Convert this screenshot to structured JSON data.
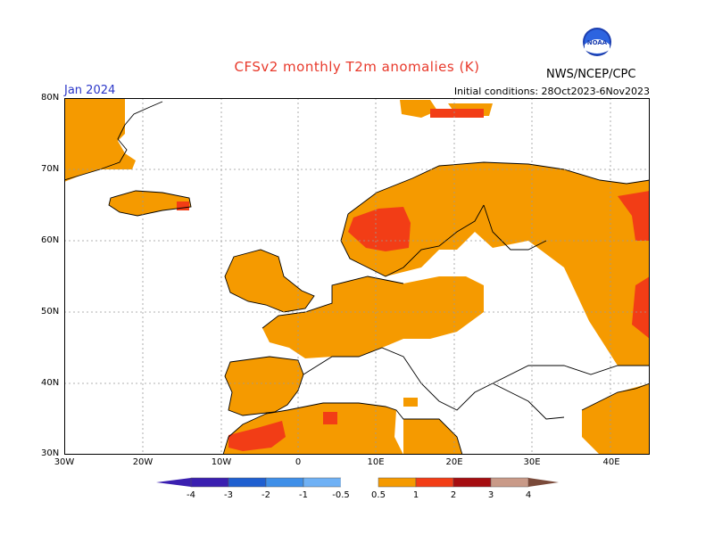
{
  "header": {
    "title": "CFSv2 monthly T2m anomalies (K)",
    "agency": "NWS/NCEP/CPC",
    "logo_text": "NOAA",
    "month": "Jan 2024",
    "initial_conditions": "Initial conditions: 28Oct2023-6Nov2023"
  },
  "axes": {
    "lat_labels": [
      "80N",
      "70N",
      "60N",
      "50N",
      "40N",
      "30N"
    ],
    "lon_labels": [
      "30W",
      "20W",
      "10W",
      "0",
      "10E",
      "20E",
      "30E",
      "40E"
    ]
  },
  "colorbar": {
    "labels": [
      "-4",
      "-3",
      "-2",
      "-1",
      "-0.5",
      "0.5",
      "1",
      "2",
      "3",
      "4"
    ],
    "colors": [
      "#3a1fb0",
      "#1f5fd0",
      "#3f8fe8",
      "#6fb1f5",
      "#ffffff",
      "#f59a00",
      "#f23d16",
      "#a50d10",
      "#c99a88",
      "#7a4a3a"
    ]
  },
  "legend_colors": {
    "anomaly_05_1": "#f59a00",
    "anomaly_1_2": "#f23d16",
    "land_outline": "#000000",
    "grid": "#999999"
  }
}
